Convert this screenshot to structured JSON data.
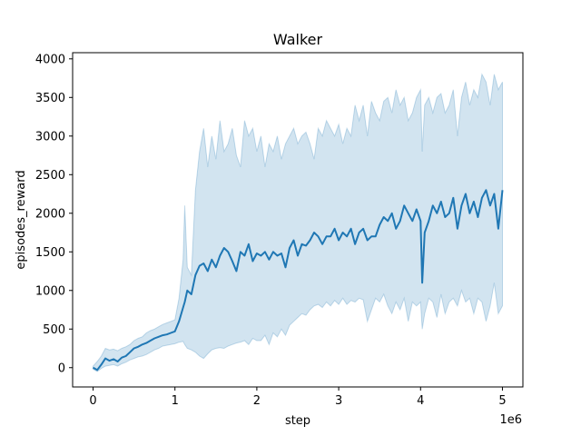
{
  "chart_data": {
    "type": "line",
    "title": "Walker",
    "xlabel": "step",
    "ylabel": "episodes_reward",
    "x_offset_label": "1e6",
    "xlim": [
      -0.25,
      5.25
    ],
    "ylim": [
      -250,
      4080
    ],
    "xticks": [
      0,
      1,
      2,
      3,
      4,
      5
    ],
    "yticks": [
      0,
      500,
      1000,
      1500,
      2000,
      2500,
      3000,
      3500,
      4000
    ],
    "grid": false,
    "legend": "none",
    "colors": {
      "line": "#1f77b4",
      "band": "#1f77b4"
    },
    "series": [
      {
        "x": [
          0,
          0.05,
          0.1,
          0.15,
          0.2,
          0.25,
          0.3,
          0.35,
          0.4,
          0.45,
          0.5,
          0.55,
          0.6,
          0.65,
          0.7,
          0.75,
          0.8,
          0.85,
          0.9,
          0.95,
          1.0,
          1.05,
          1.1,
          1.12,
          1.15,
          1.2,
          1.25,
          1.3,
          1.35,
          1.4,
          1.45,
          1.5,
          1.55,
          1.6,
          1.65,
          1.7,
          1.75,
          1.8,
          1.85,
          1.9,
          1.95,
          2.0,
          2.05,
          2.1,
          2.15,
          2.2,
          2.25,
          2.3,
          2.35,
          2.4,
          2.45,
          2.5,
          2.55,
          2.6,
          2.65,
          2.7,
          2.75,
          2.8,
          2.85,
          2.9,
          2.95,
          3.0,
          3.05,
          3.1,
          3.15,
          3.2,
          3.25,
          3.3,
          3.35,
          3.4,
          3.45,
          3.5,
          3.55,
          3.6,
          3.65,
          3.7,
          3.75,
          3.8,
          3.85,
          3.9,
          3.95,
          4.0,
          4.02,
          4.05,
          4.1,
          4.15,
          4.2,
          4.25,
          4.3,
          4.35,
          4.4,
          4.45,
          4.5,
          4.55,
          4.6,
          4.65,
          4.7,
          4.75,
          4.8,
          4.85,
          4.9,
          4.95,
          5.0
        ],
        "y": [
          0,
          -30,
          40,
          120,
          90,
          110,
          80,
          130,
          150,
          200,
          250,
          270,
          300,
          320,
          350,
          380,
          400,
          420,
          430,
          450,
          470,
          600,
          780,
          850,
          1000,
          950,
          1200,
          1320,
          1350,
          1250,
          1400,
          1300,
          1450,
          1550,
          1500,
          1380,
          1250,
          1500,
          1450,
          1600,
          1380,
          1480,
          1450,
          1500,
          1400,
          1500,
          1450,
          1480,
          1300,
          1550,
          1650,
          1450,
          1600,
          1580,
          1650,
          1750,
          1700,
          1600,
          1700,
          1700,
          1800,
          1650,
          1750,
          1700,
          1800,
          1600,
          1750,
          1800,
          1650,
          1700,
          1700,
          1850,
          1950,
          1900,
          2000,
          1800,
          1900,
          2100,
          2000,
          1900,
          2050,
          1900,
          1100,
          1750,
          1900,
          2100,
          2000,
          2150,
          1950,
          2000,
          2200,
          1800,
          2100,
          2250,
          2000,
          2150,
          1950,
          2200,
          2300,
          2100,
          2250,
          1800,
          2300
        ],
        "lower": [
          -20,
          -50,
          -10,
          20,
          30,
          40,
          20,
          50,
          70,
          100,
          120,
          140,
          150,
          170,
          200,
          230,
          250,
          280,
          290,
          300,
          310,
          330,
          340,
          300,
          250,
          230,
          200,
          150,
          120,
          180,
          230,
          250,
          260,
          250,
          280,
          300,
          320,
          330,
          350,
          300,
          380,
          350,
          350,
          420,
          300,
          450,
          400,
          500,
          420,
          550,
          600,
          650,
          700,
          680,
          750,
          800,
          820,
          780,
          850,
          800,
          870,
          820,
          900,
          820,
          870,
          850,
          900,
          880,
          600,
          750,
          900,
          850,
          950,
          800,
          700,
          850,
          750,
          900,
          600,
          850,
          800,
          850,
          500,
          700,
          900,
          850,
          650,
          950,
          700,
          850,
          900,
          800,
          1000,
          850,
          900,
          700,
          900,
          850,
          600,
          800,
          1100,
          700,
          800
        ],
        "upper": [
          20,
          80,
          150,
          250,
          230,
          240,
          220,
          250,
          270,
          300,
          350,
          380,
          400,
          450,
          480,
          500,
          530,
          560,
          580,
          600,
          620,
          900,
          1400,
          2100,
          1300,
          1200,
          2300,
          2800,
          3100,
          2600,
          3000,
          2700,
          3200,
          2800,
          2900,
          3100,
          2750,
          2600,
          3200,
          3000,
          3100,
          2800,
          3000,
          2600,
          2900,
          2800,
          3000,
          2700,
          2900,
          3000,
          3100,
          2900,
          3000,
          3050,
          2900,
          2700,
          3100,
          3000,
          3200,
          3100,
          3000,
          3150,
          2900,
          3100,
          3000,
          3400,
          3200,
          3400,
          3000,
          3450,
          3300,
          3200,
          3450,
          3500,
          3300,
          3600,
          3400,
          3500,
          3200,
          3300,
          3500,
          3600,
          2800,
          3400,
          3500,
          3300,
          3500,
          3550,
          3300,
          3400,
          3600,
          3000,
          3500,
          3700,
          3400,
          3600,
          3500,
          3800,
          3700,
          3400,
          3800,
          3600,
          3700
        ]
      }
    ]
  }
}
